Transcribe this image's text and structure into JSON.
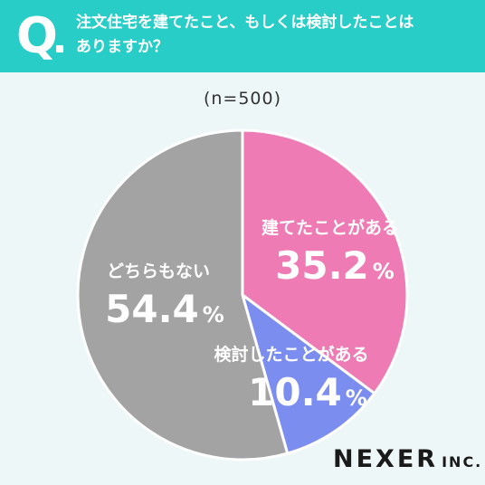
{
  "header": {
    "q_mark": "Q",
    "question": "注文住宅を建てたこと、もしくは検討したことは\nありますか？"
  },
  "sample_size": "(n=500)",
  "brand": {
    "name": "NEXER",
    "suffix": "INC."
  },
  "chart_data": {
    "type": "pie",
    "slices": [
      {
        "label": "建てたことがある",
        "value": 35.2,
        "value_text": "35.2",
        "unit": "%",
        "color": "#ee7bb4"
      },
      {
        "label": "検討したことがある",
        "value": 10.4,
        "value_text": "10.4",
        "unit": "%",
        "color": "#7c8df0"
      },
      {
        "label": "どちらもない",
        "value": 54.4,
        "value_text": "54.4",
        "unit": "%",
        "color": "#a3a3a3"
      }
    ]
  },
  "colors": {
    "header": "#27cdc6",
    "background": "#eef7f7",
    "slice_border": "#ffffff",
    "label_text": "#ffffff"
  }
}
